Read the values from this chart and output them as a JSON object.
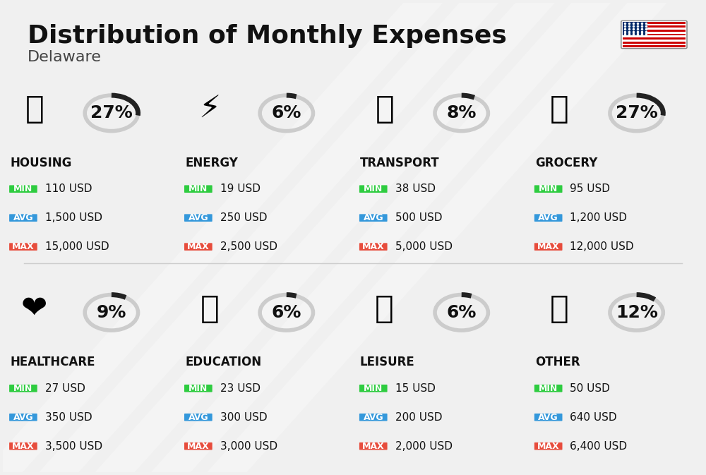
{
  "title": "Distribution of Monthly Expenses",
  "subtitle": "Delaware",
  "background_color": "#f0f0f0",
  "categories": [
    {
      "name": "HOUSING",
      "percent": 27,
      "min": "110 USD",
      "avg": "1,500 USD",
      "max": "15,000 USD",
      "row": 0,
      "col": 0
    },
    {
      "name": "ENERGY",
      "percent": 6,
      "min": "19 USD",
      "avg": "250 USD",
      "max": "2,500 USD",
      "row": 0,
      "col": 1
    },
    {
      "name": "TRANSPORT",
      "percent": 8,
      "min": "38 USD",
      "avg": "500 USD",
      "max": "5,000 USD",
      "row": 0,
      "col": 2
    },
    {
      "name": "GROCERY",
      "percent": 27,
      "min": "95 USD",
      "avg": "1,200 USD",
      "max": "12,000 USD",
      "row": 0,
      "col": 3
    },
    {
      "name": "HEALTHCARE",
      "percent": 9,
      "min": "27 USD",
      "avg": "350 USD",
      "max": "3,500 USD",
      "row": 1,
      "col": 0
    },
    {
      "name": "EDUCATION",
      "percent": 6,
      "min": "23 USD",
      "avg": "300 USD",
      "max": "3,000 USD",
      "row": 1,
      "col": 1
    },
    {
      "name": "LEISURE",
      "percent": 6,
      "min": "15 USD",
      "avg": "200 USD",
      "max": "2,000 USD",
      "row": 1,
      "col": 2
    },
    {
      "name": "OTHER",
      "percent": 12,
      "min": "50 USD",
      "avg": "640 USD",
      "max": "6,400 USD",
      "row": 1,
      "col": 3
    }
  ],
  "color_min": "#2ecc40",
  "color_avg": "#3498db",
  "color_max": "#e74c3c",
  "arc_color": "#222222",
  "arc_bg_color": "#cccccc",
  "label_fontsize": 10,
  "value_fontsize": 11,
  "name_fontsize": 12,
  "percent_fontsize": 18
}
